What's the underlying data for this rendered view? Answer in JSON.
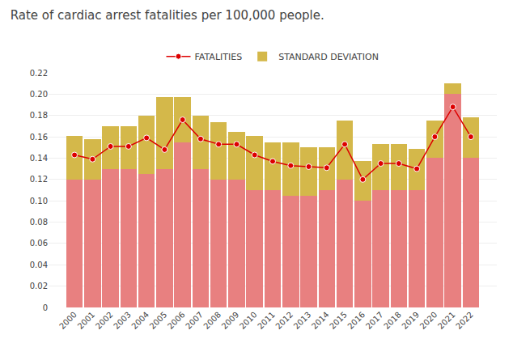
{
  "chart_data": {
    "type": "bar",
    "stacked": true,
    "title": "Rate of cardiac arrest fatalities per 100,000 people.",
    "categories": [
      "2000",
      "2001",
      "2002",
      "2003",
      "2004",
      "2005",
      "2006",
      "2007",
      "2008",
      "2009",
      "2010",
      "2011",
      "2012",
      "2013",
      "2014",
      "2015",
      "2016",
      "2017",
      "2018",
      "2019",
      "2020",
      "2021",
      "2022"
    ],
    "series": [
      {
        "type": "bar",
        "color": "#e88080",
        "values": [
          0.12,
          0.12,
          0.13,
          0.13,
          0.125,
          0.13,
          0.155,
          0.13,
          0.12,
          0.12,
          0.11,
          0.11,
          0.105,
          0.105,
          0.11,
          0.12,
          0.1,
          0.11,
          0.11,
          0.11,
          0.14,
          0.2,
          0.14
        ]
      },
      {
        "type": "bar",
        "name": "STANDARD DEVIATION",
        "color": "#d4b84a",
        "values": [
          0.041,
          0.038,
          0.04,
          0.04,
          0.055,
          0.067,
          0.042,
          0.05,
          0.054,
          0.045,
          0.051,
          0.045,
          0.05,
          0.045,
          0.04,
          0.055,
          0.037,
          0.043,
          0.043,
          0.039,
          0.035,
          0.01,
          0.038
        ]
      },
      {
        "type": "line",
        "name": "FATALITIES",
        "color": "#dd0000",
        "marker": "circle",
        "line_style": "solid",
        "values": [
          0.143,
          0.139,
          0.151,
          0.151,
          0.159,
          0.148,
          0.176,
          0.158,
          0.153,
          0.153,
          0.143,
          0.137,
          0.133,
          0.132,
          0.131,
          0.153,
          0.12,
          0.135,
          0.135,
          0.13,
          0.16,
          0.188,
          0.16
        ]
      }
    ],
    "ylim": [
      0,
      0.22
    ],
    "yticks": [
      0,
      0.02,
      0.04,
      0.06,
      0.08,
      {
        "value": 0.1,
        "label": "0.10"
      },
      0.12,
      0.14,
      0.16,
      0.18,
      {
        "value": 0.2,
        "label": "0.20"
      },
      0.22
    ],
    "grid": true,
    "legend": "top"
  }
}
